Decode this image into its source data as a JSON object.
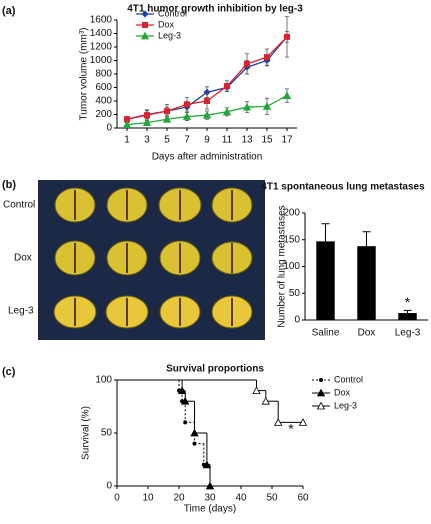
{
  "chart_data": [
    {
      "type": "line",
      "panel_label": "(a)",
      "title": "4T1 humor growth inhibition by leg-3",
      "ylabel": "Tumor volume (mm³)",
      "xlabel": "Days after administration",
      "x": [
        1,
        3,
        5,
        7,
        9,
        11,
        13,
        15,
        17
      ],
      "xlim": [
        0,
        18
      ],
      "xticks": [
        1,
        3,
        5,
        7,
        9,
        11,
        13,
        15,
        17
      ],
      "ylim": [
        0,
        1600
      ],
      "yticks": [
        0,
        200,
        400,
        600,
        800,
        1000,
        1200,
        1400,
        1600
      ],
      "legend": "upper left",
      "series": [
        {
          "name": "Control",
          "color": "#1f3fa8",
          "marker": "diamond",
          "values": [
            130,
            200,
            250,
            310,
            530,
            600,
            900,
            1000,
            1350
          ],
          "errors": [
            30,
            60,
            60,
            80,
            80,
            60,
            100,
            80,
            80
          ]
        },
        {
          "name": "Dox",
          "color": "#e0202a",
          "marker": "square",
          "values": [
            130,
            190,
            250,
            350,
            400,
            620,
            950,
            1050,
            1350
          ],
          "errors": [
            40,
            80,
            100,
            100,
            120,
            80,
            150,
            120,
            300
          ]
        },
        {
          "name": "Leg-3",
          "color": "#22a83a",
          "marker": "triangle",
          "values": [
            50,
            80,
            130,
            170,
            190,
            240,
            310,
            320,
            480
          ],
          "errors": [
            30,
            40,
            40,
            60,
            60,
            60,
            80,
            120,
            100
          ]
        }
      ]
    },
    {
      "type": "bar",
      "panel_label": "(b)",
      "title": "4T1 spontaneous lung metastases",
      "ylabel": "Number of lung metastases",
      "categories": [
        "Saline",
        "Dox",
        "Leg-3"
      ],
      "values": [
        147,
        138,
        13
      ],
      "errors": [
        33,
        27,
        5
      ],
      "color": "#000000",
      "ylim": [
        0,
        200
      ],
      "yticks": [
        0,
        50,
        100,
        150,
        200
      ],
      "annotation": "*"
    },
    {
      "type": "step",
      "panel_label": "(c)",
      "title": "Survival proportions",
      "ylabel": "Survival (%)",
      "xlabel": "Time (days)",
      "xlim": [
        0,
        60
      ],
      "xticks": [
        0,
        10,
        20,
        30,
        40,
        50,
        60
      ],
      "ylim": [
        0,
        100
      ],
      "yticks": [
        0,
        50,
        100
      ],
      "legend": "upper right",
      "annotation": "*",
      "series": [
        {
          "name": "Control",
          "color": "#000000",
          "marker": "dot",
          "dash": true,
          "x": [
            0,
            20,
            21,
            22,
            25,
            28,
            30
          ],
          "values": [
            100,
            90,
            80,
            60,
            40,
            20,
            0
          ]
        },
        {
          "name": "Dox",
          "color": "#000000",
          "marker": "triangle",
          "dash": false,
          "x": [
            0,
            21,
            22,
            25,
            29,
            30
          ],
          "values": [
            100,
            90,
            80,
            50,
            20,
            0
          ]
        },
        {
          "name": "Leg-3",
          "color": "#000000",
          "marker": "open-triangle",
          "dash": false,
          "x": [
            0,
            45,
            48,
            52,
            60
          ],
          "values": [
            100,
            90,
            80,
            60,
            60
          ]
        }
      ]
    }
  ],
  "image": {
    "row_labels": [
      "Control",
      "Dox",
      "Leg-3"
    ]
  }
}
